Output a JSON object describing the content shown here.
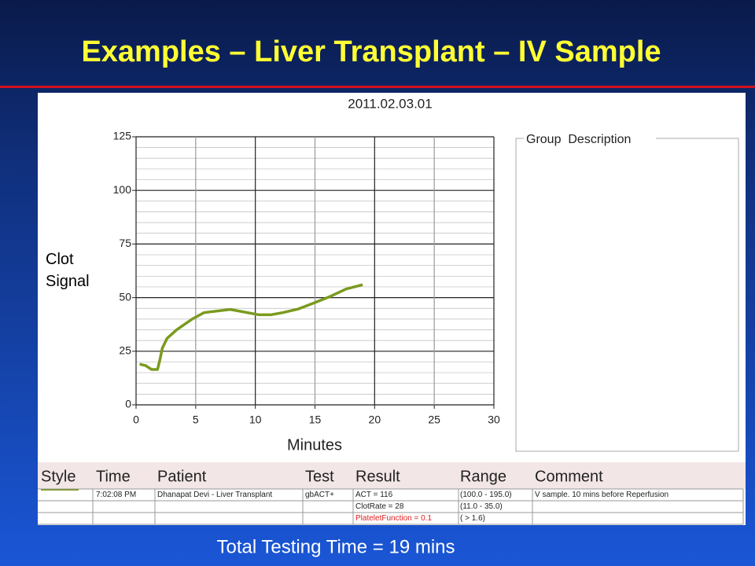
{
  "title": "Examples – Liver Transplant – IV Sample",
  "chart_data": {
    "type": "line",
    "title": "2011.02.03.01",
    "xlabel": "Minutes",
    "ylabel": "Clot Signal",
    "xlim": [
      0,
      30
    ],
    "xticks": [
      0,
      5,
      10,
      15,
      20,
      25,
      30
    ],
    "ylim": [
      0,
      125
    ],
    "yticks": [
      0,
      25,
      50,
      75,
      100,
      125
    ],
    "grid": true,
    "series": [
      {
        "color": "#7a9a1e",
        "x": [
          0.3,
          0.8,
          1.3,
          1.8,
          2.0,
          2.2,
          2.6,
          3.4,
          4.7,
          5.7,
          7.9,
          10.3,
          11.3,
          12.3,
          13.6,
          15.0,
          16.3,
          17.6,
          19.0
        ],
        "values": [
          19,
          18.3,
          16.5,
          16.5,
          21,
          26.4,
          31,
          35,
          40,
          43,
          44.5,
          42,
          42,
          43,
          44.7,
          47.7,
          50.6,
          54,
          56
        ]
      }
    ]
  },
  "group_box": {
    "label": "Group  Description"
  },
  "table": {
    "headers": [
      "Style",
      "Time",
      "Patient",
      "Test",
      "Result",
      "Range",
      "Comment"
    ],
    "rows": [
      {
        "time": "7:02:08 PM",
        "patient": "Dhanapat Devi - Liver Transplant",
        "test": "gbACT+",
        "result": "ACT = 116",
        "range": "(100.0 - 195.0)",
        "comment": "V sample. 10 mins before Reperfusion"
      },
      {
        "result": "ClotRate = 28",
        "range": "(11.0 - 35.0)"
      },
      {
        "result": "PlateletFunction = 0.1",
        "range": "( > 1.6)"
      }
    ]
  },
  "footer": "Total Testing Time = 19 mins"
}
